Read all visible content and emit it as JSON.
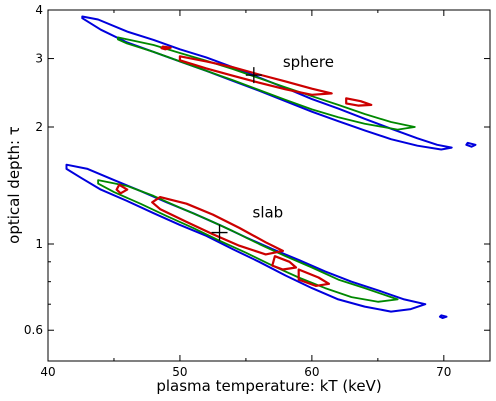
{
  "chart_data": {
    "type": "contour",
    "xlabel": "plasma temperature: kT (keV)",
    "ylabel": "optical depth: τ",
    "xlim": [
      40,
      73.5
    ],
    "ylim": [
      0.5,
      4
    ],
    "yscale": "log",
    "x_ticks": [
      40,
      50,
      60,
      70
    ],
    "y_ticks": [
      0.6,
      1,
      2,
      3,
      4
    ],
    "colors": {
      "outer": "#0000dd",
      "middle": "#008800",
      "inner": "#cc0000"
    },
    "annotations": [
      {
        "text": "sphere",
        "x": 57.8,
        "y": 2.85
      },
      {
        "text": "slab",
        "x": 55.5,
        "y": 1.17
      }
    ],
    "best_fit": [
      {
        "name": "sphere",
        "x": 55.6,
        "y": 2.72
      },
      {
        "name": "slab",
        "x": 53.0,
        "y": 1.07
      }
    ],
    "series": [
      {
        "group": "sphere",
        "level": "outer",
        "points": [
          [
            42.6,
            3.85
          ],
          [
            43.8,
            3.78
          ],
          [
            46,
            3.52
          ],
          [
            48,
            3.35
          ],
          [
            50,
            3.17
          ],
          [
            52,
            3.02
          ],
          [
            54,
            2.85
          ],
          [
            56,
            2.68
          ],
          [
            58,
            2.52
          ],
          [
            60,
            2.36
          ],
          [
            62,
            2.23
          ],
          [
            64,
            2.1
          ],
          [
            66,
            1.98
          ],
          [
            68,
            1.87
          ],
          [
            69.5,
            1.8
          ],
          [
            70.6,
            1.77
          ],
          [
            69.8,
            1.75
          ],
          [
            68,
            1.79
          ],
          [
            66,
            1.86
          ],
          [
            64,
            1.96
          ],
          [
            62,
            2.07
          ],
          [
            60,
            2.19
          ],
          [
            58,
            2.33
          ],
          [
            56,
            2.48
          ],
          [
            54,
            2.63
          ],
          [
            52,
            2.79
          ],
          [
            50,
            2.95
          ],
          [
            48,
            3.12
          ],
          [
            46,
            3.3
          ],
          [
            44,
            3.56
          ],
          [
            42.6,
            3.81
          ]
        ]
      },
      {
        "group": "sphere",
        "level": "outer",
        "points": [
          [
            71.8,
            1.82
          ],
          [
            72.4,
            1.8
          ],
          [
            72.1,
            1.78
          ],
          [
            71.7,
            1.8
          ]
        ]
      },
      {
        "group": "sphere",
        "level": "middle",
        "points": [
          [
            45.3,
            3.4
          ],
          [
            48,
            3.25
          ],
          [
            50,
            3.1
          ],
          [
            52,
            2.96
          ],
          [
            54,
            2.82
          ],
          [
            56,
            2.67
          ],
          [
            58,
            2.53
          ],
          [
            60,
            2.4
          ],
          [
            62,
            2.28
          ],
          [
            64,
            2.16
          ],
          [
            66,
            2.06
          ],
          [
            67.8,
            2.0
          ],
          [
            66.5,
            1.97
          ],
          [
            64,
            2.04
          ],
          [
            62,
            2.12
          ],
          [
            60,
            2.22
          ],
          [
            58,
            2.35
          ],
          [
            56,
            2.49
          ],
          [
            54,
            2.64
          ],
          [
            52,
            2.79
          ],
          [
            50,
            2.95
          ],
          [
            48,
            3.12
          ],
          [
            46,
            3.28
          ],
          [
            45.3,
            3.36
          ]
        ]
      },
      {
        "group": "sphere",
        "level": "inner",
        "points": [
          [
            50,
            3.04
          ],
          [
            52,
            2.95
          ],
          [
            54,
            2.85
          ],
          [
            56,
            2.73
          ],
          [
            58,
            2.62
          ],
          [
            60,
            2.51
          ],
          [
            61.5,
            2.44
          ],
          [
            60,
            2.42
          ],
          [
            58,
            2.5
          ],
          [
            56,
            2.6
          ],
          [
            54,
            2.71
          ],
          [
            52,
            2.83
          ],
          [
            50,
            2.97
          ]
        ]
      },
      {
        "group": "sphere",
        "level": "inner",
        "points": [
          [
            48.7,
            3.22
          ],
          [
            49.3,
            3.2
          ],
          [
            48.9,
            3.17
          ],
          [
            48.6,
            3.19
          ]
        ]
      },
      {
        "group": "sphere",
        "level": "inner",
        "points": [
          [
            62.6,
            2.37
          ],
          [
            63.7,
            2.33
          ],
          [
            64.5,
            2.28
          ],
          [
            63.5,
            2.27
          ],
          [
            62.6,
            2.3
          ]
        ]
      },
      {
        "group": "slab",
        "level": "outer",
        "points": [
          [
            41.4,
            1.6
          ],
          [
            43,
            1.56
          ],
          [
            45,
            1.46
          ],
          [
            47,
            1.37
          ],
          [
            49,
            1.28
          ],
          [
            51,
            1.2
          ],
          [
            53,
            1.12
          ],
          [
            55,
            1.04
          ],
          [
            57,
            0.97
          ],
          [
            59,
            0.91
          ],
          [
            61,
            0.85
          ],
          [
            63,
            0.8
          ],
          [
            65,
            0.76
          ],
          [
            67,
            0.72
          ],
          [
            68.6,
            0.7
          ],
          [
            67.5,
            0.68
          ],
          [
            66,
            0.67
          ],
          [
            64,
            0.69
          ],
          [
            62,
            0.72
          ],
          [
            60,
            0.77
          ],
          [
            58,
            0.83
          ],
          [
            56,
            0.9
          ],
          [
            54,
            0.97
          ],
          [
            52,
            1.05
          ],
          [
            50,
            1.12
          ],
          [
            48,
            1.2
          ],
          [
            46,
            1.29
          ],
          [
            44,
            1.38
          ],
          [
            42.5,
            1.48
          ],
          [
            41.4,
            1.56
          ]
        ]
      },
      {
        "group": "slab",
        "level": "outer",
        "points": [
          [
            69.8,
            0.655
          ],
          [
            70.2,
            0.65
          ],
          [
            69.9,
            0.645
          ],
          [
            69.7,
            0.65
          ]
        ]
      },
      {
        "group": "slab",
        "level": "middle",
        "points": [
          [
            43.8,
            1.46
          ],
          [
            46,
            1.41
          ],
          [
            48,
            1.33
          ],
          [
            50,
            1.24
          ],
          [
            52,
            1.16
          ],
          [
            54,
            1.08
          ],
          [
            56,
            1.0
          ],
          [
            58,
            0.93
          ],
          [
            60,
            0.87
          ],
          [
            62,
            0.81
          ],
          [
            64,
            0.77
          ],
          [
            66,
            0.73
          ],
          [
            66.5,
            0.72
          ],
          [
            65,
            0.71
          ],
          [
            63,
            0.73
          ],
          [
            61,
            0.77
          ],
          [
            59,
            0.82
          ],
          [
            57,
            0.88
          ],
          [
            55,
            0.95
          ],
          [
            53,
            1.02
          ],
          [
            51,
            1.1
          ],
          [
            49,
            1.18
          ],
          [
            47,
            1.27
          ],
          [
            45,
            1.36
          ],
          [
            43.8,
            1.43
          ]
        ]
      },
      {
        "group": "slab",
        "level": "inner",
        "points": [
          [
            48.5,
            1.32
          ],
          [
            50.5,
            1.27
          ],
          [
            52.5,
            1.19
          ],
          [
            54.5,
            1.1
          ],
          [
            56.5,
            1.01
          ],
          [
            57.8,
            0.96
          ],
          [
            56.5,
            0.94
          ],
          [
            54.5,
            0.99
          ],
          [
            52.5,
            1.06
          ],
          [
            50.5,
            1.14
          ],
          [
            48.5,
            1.23
          ],
          [
            47.9,
            1.28
          ]
        ]
      },
      {
        "group": "slab",
        "level": "inner",
        "points": [
          [
            45.4,
            1.42
          ],
          [
            46,
            1.38
          ],
          [
            45.5,
            1.35
          ],
          [
            45.2,
            1.38
          ]
        ]
      },
      {
        "group": "slab",
        "level": "inner",
        "points": [
          [
            57.2,
            0.93
          ],
          [
            58.3,
            0.9
          ],
          [
            58.8,
            0.87
          ],
          [
            57.8,
            0.86
          ],
          [
            57,
            0.88
          ]
        ]
      },
      {
        "group": "slab",
        "level": "inner",
        "points": [
          [
            59,
            0.86
          ],
          [
            60.5,
            0.82
          ],
          [
            61.3,
            0.79
          ],
          [
            60.3,
            0.78
          ],
          [
            59,
            0.81
          ]
        ]
      }
    ]
  }
}
